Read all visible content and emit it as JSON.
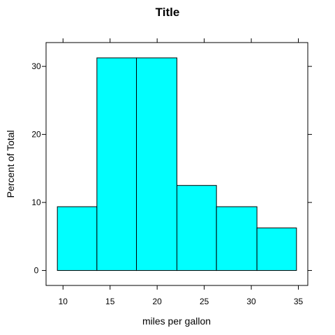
{
  "chart_data": {
    "type": "bar",
    "title": "Title",
    "xlabel": "miles per gallon",
    "ylabel": "Percent of Total",
    "bins": [
      {
        "x0": 9.4,
        "x1": 13.6,
        "value": 9.375
      },
      {
        "x0": 13.6,
        "x1": 17.8,
        "value": 31.25
      },
      {
        "x0": 17.8,
        "x1": 22.1,
        "value": 31.25
      },
      {
        "x0": 22.1,
        "x1": 26.3,
        "value": 12.5
      },
      {
        "x0": 26.3,
        "x1": 30.6,
        "value": 9.375
      },
      {
        "x0": 30.6,
        "x1": 34.8,
        "value": 6.25
      }
    ],
    "xticks": [
      "10",
      "15",
      "20",
      "25",
      "30",
      "35"
    ],
    "yticks": [
      "0",
      "10",
      "20",
      "30"
    ],
    "xlim": [
      8.2,
      36.0
    ],
    "ylim": [
      -2.2,
      33.5
    ],
    "bar_color": "#00ffff",
    "edge_color": "#000000",
    "grid": false
  }
}
